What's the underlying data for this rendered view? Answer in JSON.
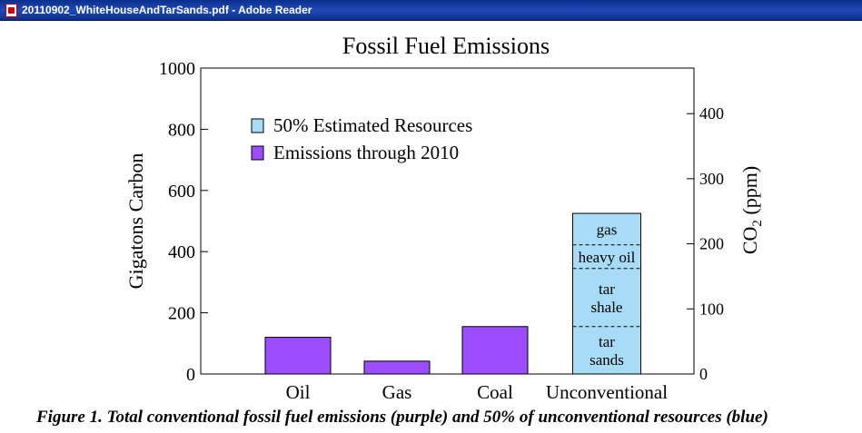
{
  "window": {
    "title": "20110902_WhiteHouseAndTarSands.pdf - Adobe Reader",
    "icon": "pdf-document-icon"
  },
  "caption": "Figure 1. Total conventional fossil fuel emissions (purple) and 50% of unconventional resources (blue)",
  "colors": {
    "emissions": "#9b4dff",
    "resources": "#a8dcf6"
  },
  "chart_data": {
    "type": "bar",
    "title": "Fossil Fuel Emissions",
    "ylabel": "Gigatons Carbon",
    "y2label": "CO",
    "y2label_sub": "2",
    "y2label_unit": " (ppm)",
    "ylim": [
      0,
      1000
    ],
    "yticks": [
      0,
      200,
      400,
      600,
      800,
      1000
    ],
    "y2ticks": [
      0,
      100,
      200,
      300,
      400
    ],
    "y2_per_y": 0.47,
    "categories": [
      "Oil",
      "Gas",
      "Coal",
      "Unconventional"
    ],
    "series": [
      {
        "name": "Emissions through 2010",
        "values": [
          120,
          42,
          155,
          0
        ]
      },
      {
        "name": "50% Estimated Resources",
        "values": [
          0,
          0,
          0,
          525
        ]
      }
    ],
    "unconventional_segments": [
      {
        "label": [
          "tar",
          "sands"
        ],
        "from": 0,
        "to": 155
      },
      {
        "label": [
          "tar",
          "shale"
        ],
        "from": 155,
        "to": 345
      },
      {
        "label": [
          "heavy oil"
        ],
        "from": 345,
        "to": 422
      },
      {
        "label": [
          "gas"
        ],
        "from": 422,
        "to": 525
      }
    ],
    "legend": {
      "placement": "upper-left",
      "entries": [
        "50% Estimated Resources",
        "Emissions through 2010"
      ]
    },
    "grid": false
  }
}
